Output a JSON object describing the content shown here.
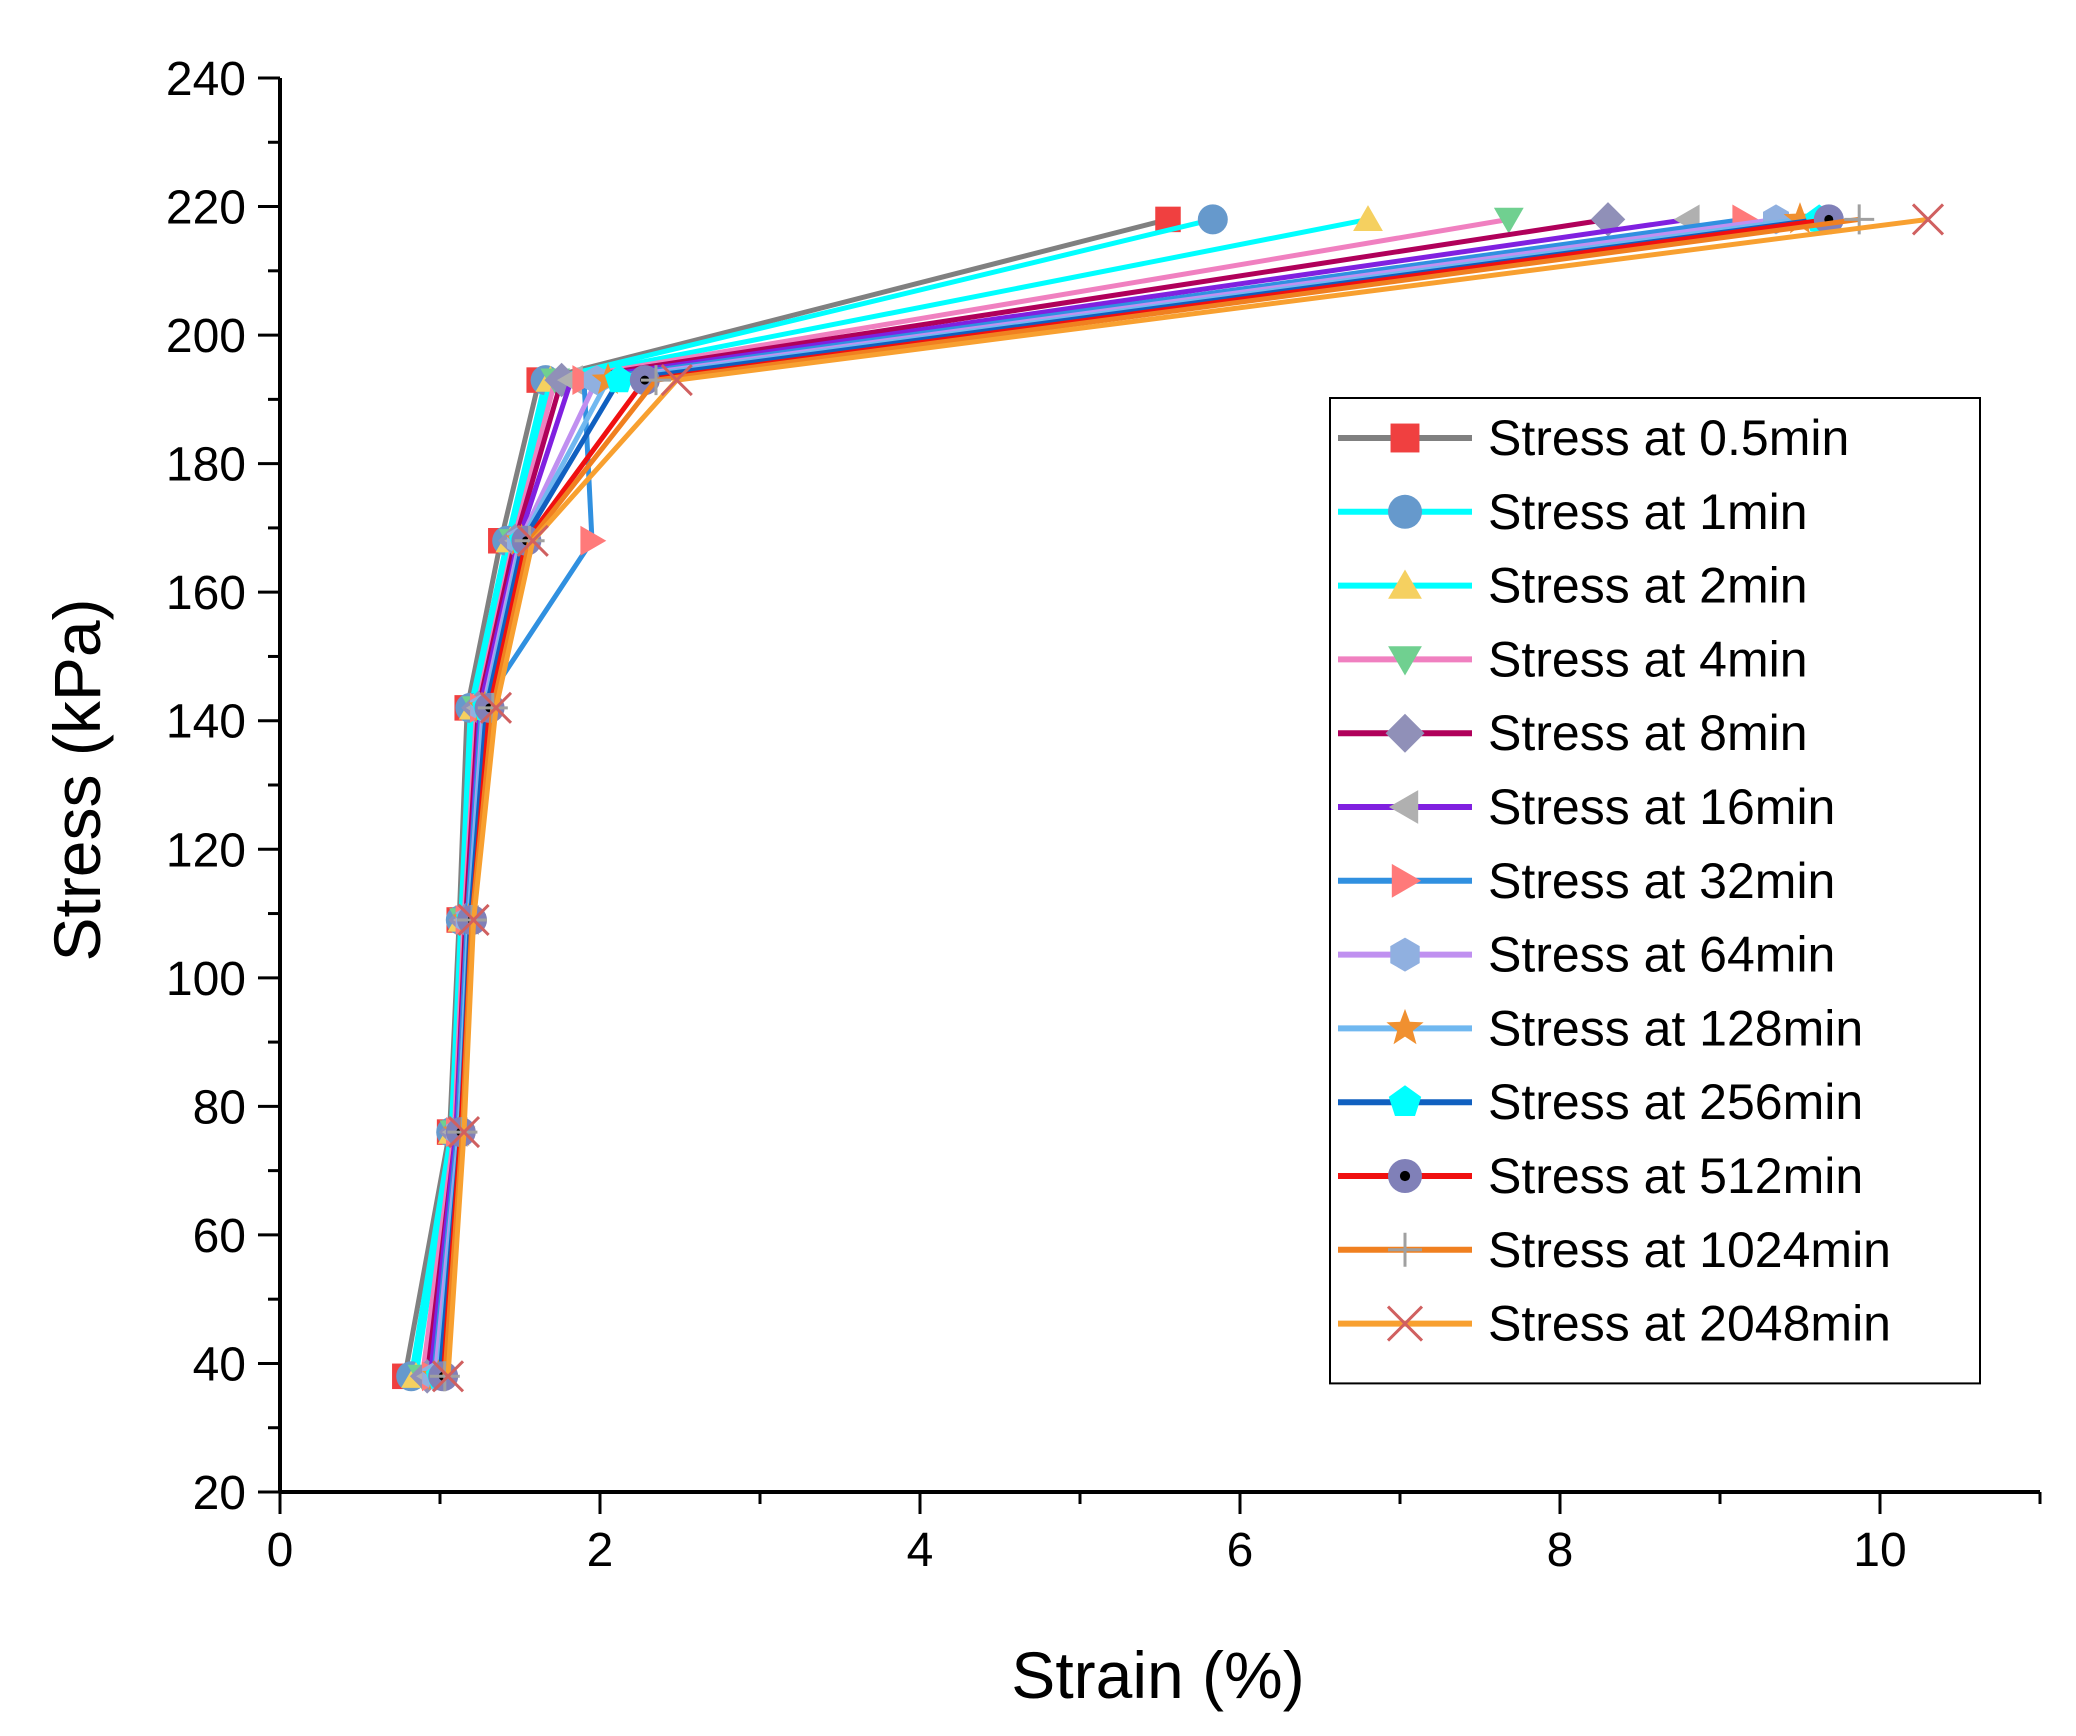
{
  "chart_data": {
    "type": "line",
    "xlabel": "Strain (%)",
    "ylabel": "Stress (kPa)",
    "xlim": [
      0,
      11
    ],
    "ylim": [
      20,
      240
    ],
    "xticks": [
      0,
      2,
      4,
      6,
      8,
      10
    ],
    "yticks": [
      20,
      40,
      60,
      80,
      100,
      120,
      140,
      160,
      180,
      200,
      220,
      240
    ],
    "grid": false,
    "legend_position": "right",
    "series": [
      {
        "name": "Stress at 0.5min",
        "line_color": "#808080",
        "marker": "square",
        "marker_color": "#f04040",
        "x": [
          0.78,
          1.06,
          1.12,
          1.17,
          1.38,
          1.62,
          5.55
        ],
        "y": [
          38,
          76,
          109,
          142,
          168,
          193,
          218
        ]
      },
      {
        "name": "Stress at 1min",
        "line_color": "#00ffff",
        "marker": "circle",
        "marker_color": "#6699cc",
        "x": [
          0.82,
          1.07,
          1.13,
          1.19,
          1.42,
          1.66,
          5.83
        ],
        "y": [
          38,
          76,
          109,
          142,
          168,
          193,
          218
        ]
      },
      {
        "name": "Stress at 2min",
        "line_color": "#00ffff",
        "marker": "triangle-up",
        "marker_color": "#f5d060",
        "x": [
          0.85,
          1.08,
          1.14,
          1.21,
          1.44,
          1.69,
          6.8
        ],
        "y": [
          38,
          76,
          109,
          142,
          168,
          193,
          218
        ]
      },
      {
        "name": "Stress at 4min",
        "line_color": "#f080c0",
        "marker": "triangle-down",
        "marker_color": "#70d090",
        "x": [
          0.89,
          1.09,
          1.15,
          1.23,
          1.46,
          1.72,
          7.68
        ],
        "y": [
          38,
          76,
          109,
          142,
          168,
          193,
          218
        ]
      },
      {
        "name": "Stress at 8min",
        "line_color": "#b0005a",
        "marker": "diamond",
        "marker_color": "#9090b8",
        "x": [
          0.92,
          1.1,
          1.16,
          1.24,
          1.47,
          1.76,
          8.3
        ],
        "y": [
          38,
          76,
          109,
          142,
          168,
          193,
          218
        ]
      },
      {
        "name": "Stress at 16min",
        "line_color": "#8020e0",
        "marker": "triangle-left",
        "marker_color": "#b0b0b0",
        "x": [
          0.94,
          1.1,
          1.17,
          1.25,
          1.49,
          1.82,
          8.8
        ],
        "y": [
          38,
          76,
          109,
          142,
          168,
          193,
          218
        ]
      },
      {
        "name": "Stress at 32min",
        "line_color": "#3090e0",
        "marker": "triangle-right",
        "marker_color": "#ff7a7a",
        "x": [
          0.96,
          1.11,
          1.17,
          1.26,
          1.95,
          1.9,
          9.15
        ],
        "y": [
          38,
          76,
          109,
          142,
          168,
          193,
          218
        ]
      },
      {
        "name": "Stress at 64min",
        "line_color": "#c090f0",
        "marker": "hexagon",
        "marker_color": "#90b0e0",
        "x": [
          0.97,
          1.12,
          1.18,
          1.27,
          1.5,
          1.98,
          9.35
        ],
        "y": [
          38,
          76,
          109,
          142,
          168,
          193,
          218
        ]
      },
      {
        "name": "Stress at 128min",
        "line_color": "#70b8f0",
        "marker": "star",
        "marker_color": "#f09030",
        "x": [
          0.99,
          1.12,
          1.18,
          1.28,
          1.51,
          2.05,
          9.5
        ],
        "y": [
          38,
          76,
          109,
          142,
          168,
          193,
          218
        ]
      },
      {
        "name": "Stress at 256min",
        "line_color": "#1060c0",
        "marker": "pentagon",
        "marker_color": "#00ffff",
        "x": [
          1.0,
          1.13,
          1.19,
          1.29,
          1.52,
          2.12,
          9.62
        ],
        "y": [
          38,
          76,
          109,
          142,
          168,
          193,
          218
        ]
      },
      {
        "name": "Stress at 512min",
        "line_color": "#f01010",
        "marker": "circle-dot",
        "marker_color": "#8080b8",
        "x": [
          1.02,
          1.13,
          1.2,
          1.31,
          1.54,
          2.28,
          9.68
        ],
        "y": [
          38,
          76,
          109,
          142,
          168,
          193,
          218
        ]
      },
      {
        "name": "Stress at 1024min",
        "line_color": "#f08020",
        "marker": "plus",
        "marker_color": "#a0a0a0",
        "x": [
          1.03,
          1.14,
          1.2,
          1.33,
          1.56,
          2.35,
          9.87
        ],
        "y": [
          38,
          76,
          109,
          142,
          168,
          193,
          218
        ]
      },
      {
        "name": "Stress at 2048min",
        "line_color": "#f8a030",
        "marker": "cross",
        "marker_color": "#d06060",
        "x": [
          1.05,
          1.15,
          1.21,
          1.35,
          1.58,
          2.48,
          10.3
        ],
        "y": [
          38,
          76,
          109,
          142,
          168,
          193,
          218
        ]
      }
    ]
  }
}
